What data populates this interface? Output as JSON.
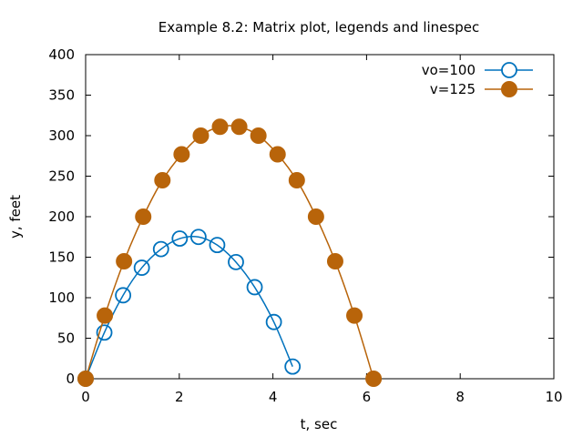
{
  "chart_data": {
    "type": "line",
    "title": "Example 8.2: Matrix plot, legends and linespec",
    "xlabel": "t, sec",
    "ylabel": "y, feet",
    "xlim": [
      0,
      10
    ],
    "ylim": [
      0,
      400
    ],
    "xticks": [
      0,
      2,
      4,
      6,
      8,
      10
    ],
    "yticks": [
      0,
      50,
      100,
      150,
      200,
      250,
      300,
      350,
      400
    ],
    "legend_position": "top-right",
    "series": [
      {
        "name": "vo=100",
        "color": "#0072bd",
        "marker": "open-circle",
        "x": [
          0,
          0.4,
          0.8,
          1.2,
          1.61,
          2.01,
          2.41,
          2.81,
          3.21,
          3.61,
          4.02,
          4.42
        ],
        "y": [
          0,
          57,
          103,
          137,
          160,
          173,
          175,
          165,
          144,
          113,
          70,
          15
        ]
      },
      {
        "name": "v=125",
        "color": "#b8640a",
        "marker": "filled-circle",
        "x": [
          0,
          0.41,
          0.82,
          1.23,
          1.64,
          2.05,
          2.46,
          2.87,
          3.28,
          3.69,
          4.1,
          4.51,
          4.92,
          5.33,
          5.74,
          6.15
        ],
        "y": [
          0,
          78,
          145,
          200,
          245,
          277,
          300,
          311,
          311,
          300,
          277,
          245,
          200,
          145,
          78,
          0
        ]
      }
    ]
  }
}
